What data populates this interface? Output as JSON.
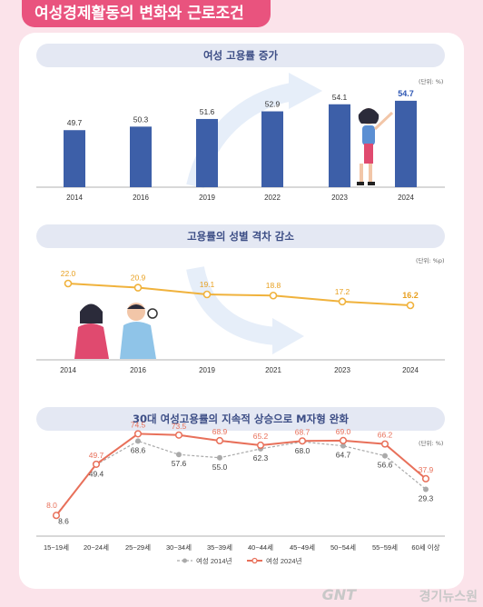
{
  "header": {
    "title": "여성경제활동의 변화와 근로조건"
  },
  "watermark": {
    "logo": "GNT",
    "text": "경기뉴스원"
  },
  "chart_data": [
    {
      "type": "bar",
      "title": "여성 고용률 증가",
      "unit": "(단위: %)",
      "categories": [
        "2014",
        "2016",
        "2019",
        "2022",
        "2023",
        "2024"
      ],
      "values": [
        49.7,
        50.3,
        51.6,
        52.9,
        54.1,
        54.7
      ],
      "value_labels": [
        "49.7",
        "50.3",
        "51.6",
        "52.9",
        "54.1",
        "54.7"
      ],
      "ylim": [
        40,
        57
      ],
      "colors": {
        "bar": "#3d5fa8",
        "highlight_label": "#2d56b3"
      }
    },
    {
      "type": "line",
      "title": "고용률의 성별 격차 감소",
      "unit": "(단위: %p)",
      "categories": [
        "2014",
        "2016",
        "2019",
        "2021",
        "2023",
        "2024"
      ],
      "values": [
        22.0,
        20.9,
        19.1,
        18.8,
        17.2,
        16.2
      ],
      "value_labels": [
        "22.0",
        "20.9",
        "19.1",
        "18.8",
        "17.2",
        "16.2"
      ],
      "ylim": [
        14,
        24
      ],
      "colors": {
        "line": "#f0b23c",
        "label": "#e8a020"
      }
    },
    {
      "type": "line",
      "title": "30대 여성고용률의 지속적 상승으로 M자형 완화",
      "unit": "(단위: %)",
      "categories": [
        "15~19세",
        "20~24세",
        "25~29세",
        "30~34세",
        "35~39세",
        "40~44세",
        "45~49세",
        "50~54세",
        "55~59세",
        "60세 이상"
      ],
      "series": [
        {
          "name": "여성 2014년",
          "values": [
            8.6,
            49.4,
            68.6,
            57.6,
            55.0,
            62.3,
            68.0,
            64.7,
            56.6,
            29.3
          ],
          "labels": [
            "8.6",
            "49.4",
            "68.6",
            "57.6",
            "55.0",
            "62.3",
            "68.0",
            "64.7",
            "56.6",
            "29.3"
          ],
          "color": "#aaaaaa"
        },
        {
          "name": "여성 2024년",
          "values": [
            8.0,
            49.7,
            74.5,
            73.5,
            68.9,
            65.2,
            68.7,
            69.0,
            66.2,
            37.9
          ],
          "labels": [
            "8.0",
            "49.7",
            "74.5",
            "73.5",
            "68.9",
            "65.2",
            "68.7",
            "69.0",
            "66.2",
            "37.9"
          ],
          "color": "#e8705a"
        }
      ],
      "ylim": [
        0,
        80
      ]
    }
  ]
}
